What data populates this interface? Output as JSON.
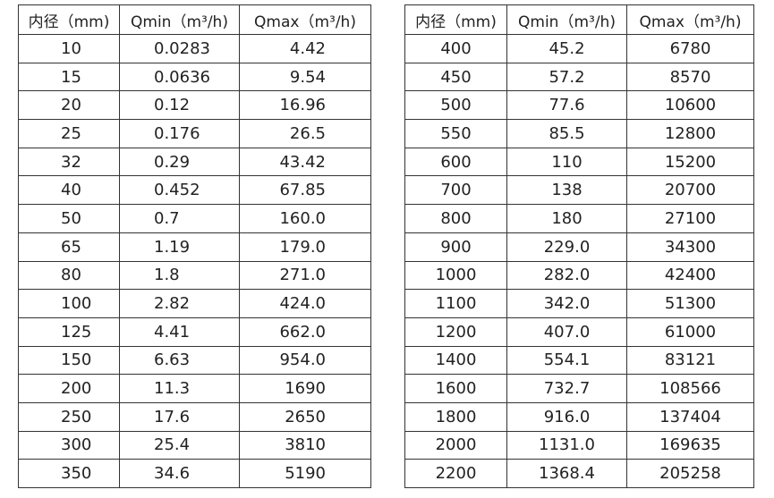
{
  "tables": [
    {
      "header": [
        "内径（mm)",
        "Qmin（m³/h)",
        "Qmax（m³/h)"
      ],
      "rows": [
        [
          "10",
          "0.0283",
          "4.42"
        ],
        [
          "15",
          "0.0636",
          "9.54"
        ],
        [
          "20",
          "0.12",
          "16.96"
        ],
        [
          "25",
          "0.176",
          "26.5"
        ],
        [
          "32",
          "0.29",
          "43.42"
        ],
        [
          "40",
          "0.452",
          "67.85"
        ],
        [
          "50",
          "0.7",
          "160.0"
        ],
        [
          "65",
          "1.19",
          "179.0"
        ],
        [
          "80",
          "1.8",
          "271.0"
        ],
        [
          "100",
          "2.82",
          "424.0"
        ],
        [
          "125",
          "4.41",
          "662.0"
        ],
        [
          "150",
          "6.63",
          "954.0"
        ],
        [
          "200",
          "11.3",
          "1690"
        ],
        [
          "250",
          "17.6",
          "2650"
        ],
        [
          "300",
          "25.4",
          "3810"
        ],
        [
          "350",
          "34.6",
          "5190"
        ]
      ]
    },
    {
      "header": [
        "内径（mm)",
        "Qmin（m³/h)",
        "Qmax（m³/h)"
      ],
      "rows": [
        [
          "400",
          "45.2",
          "6780"
        ],
        [
          "450",
          "57.2",
          "8570"
        ],
        [
          "500",
          "77.6",
          "10600"
        ],
        [
          "550",
          "85.5",
          "12800"
        ],
        [
          "600",
          "110",
          "15200"
        ],
        [
          "700",
          "138",
          "20700"
        ],
        [
          "800",
          "180",
          "27100"
        ],
        [
          "900",
          "229.0",
          "34300"
        ],
        [
          "1000",
          "282.0",
          "42400"
        ],
        [
          "1100",
          "342.0",
          "51300"
        ],
        [
          "1200",
          "407.0",
          "61000"
        ],
        [
          "1400",
          "554.1",
          "83121"
        ],
        [
          "1600",
          "732.7",
          "108566"
        ],
        [
          "1800",
          "916.0",
          "137404"
        ],
        [
          "2000",
          "1131.0",
          "169635"
        ],
        [
          "2200",
          "1368.4",
          "205258"
        ]
      ]
    }
  ]
}
